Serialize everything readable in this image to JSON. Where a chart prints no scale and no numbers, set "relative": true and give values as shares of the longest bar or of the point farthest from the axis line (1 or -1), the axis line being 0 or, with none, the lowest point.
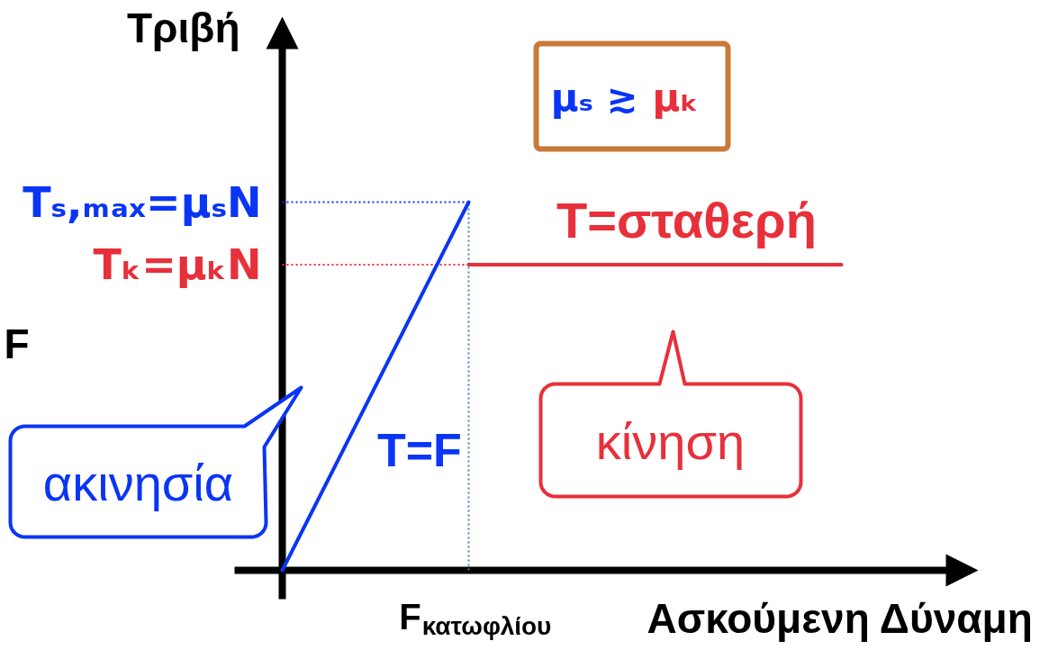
{
  "chart_data": {
    "type": "line",
    "relative": true,
    "ylabel": "Τριβή",
    "xlabel": "Ασκούμενη Δύναμη",
    "categories": [
      null,
      null,
      null,
      null
    ],
    "series": [
      {
        "name": "T=F",
        "color": "#0a35f5",
        "values": [
          0,
          1,
          null,
          null
        ]
      },
      {
        "name": "T=σταθερή",
        "color": "#e8303a",
        "values": [
          null,
          0.83,
          0.83,
          0.83
        ]
      }
    ],
    "ref_lines": [
      {
        "axis": "y",
        "value": 1,
        "label": "Tₛ,ₘₐₓ=μₛN",
        "color": "#0a35f5",
        "line_style": "dotted"
      },
      {
        "axis": "y",
        "value": 0.83,
        "label": "Tₖ=μₖN",
        "color": "#e8303a",
        "line_style": "dotted"
      }
    ],
    "annotations": [
      "F",
      "ακινησία",
      "κίνηση",
      "μₛ ≳ μₖ",
      "F$_{κατωφλίου}$"
    ]
  }
}
